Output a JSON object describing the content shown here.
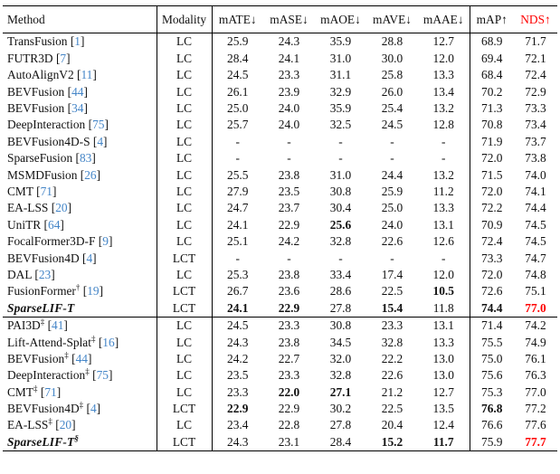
{
  "colors": {
    "citation_link": "#4485c7",
    "highlight_red": "#fe0000",
    "rule_black": "#000000"
  },
  "header": {
    "method": "Method",
    "modality": "Modality",
    "metrics": [
      "mATE↓",
      "mASE↓",
      "mAOE↓",
      "mAVE↓",
      "mAAE↓"
    ],
    "map": "mAP↑",
    "nds": "NDS↑"
  },
  "sections": [
    {
      "rows": [
        {
          "method": "TransFusion",
          "sup": "",
          "cite": "1",
          "emph": false,
          "modality": "LC",
          "values": [
            "25.9",
            "24.3",
            "35.9",
            "28.8",
            "12.7",
            "68.9",
            "71.7"
          ],
          "bold": [],
          "red": []
        },
        {
          "method": "FUTR3D",
          "sup": "",
          "cite": "7",
          "emph": false,
          "modality": "LC",
          "values": [
            "28.4",
            "24.1",
            "31.0",
            "30.0",
            "12.0",
            "69.4",
            "72.1"
          ],
          "bold": [],
          "red": []
        },
        {
          "method": "AutoAlignV2",
          "sup": "",
          "cite": "11",
          "emph": false,
          "modality": "LC",
          "values": [
            "24.5",
            "23.3",
            "31.1",
            "25.8",
            "13.3",
            "68.4",
            "72.4"
          ],
          "bold": [],
          "red": []
        },
        {
          "method": "BEVFusion",
          "sup": "",
          "cite": "44",
          "emph": false,
          "modality": "LC",
          "values": [
            "26.1",
            "23.9",
            "32.9",
            "26.0",
            "13.4",
            "70.2",
            "72.9"
          ],
          "bold": [],
          "red": []
        },
        {
          "method": "BEVFusion",
          "sup": "",
          "cite": "34",
          "emph": false,
          "modality": "LC",
          "values": [
            "25.0",
            "24.0",
            "35.9",
            "25.4",
            "13.2",
            "71.3",
            "73.3"
          ],
          "bold": [],
          "red": []
        },
        {
          "method": "DeepInteraction",
          "sup": "",
          "cite": "75",
          "emph": false,
          "modality": "LC",
          "values": [
            "25.7",
            "24.0",
            "32.5",
            "24.5",
            "12.8",
            "70.8",
            "73.4"
          ],
          "bold": [],
          "red": []
        },
        {
          "method": "BEVFusion4D-S",
          "sup": "",
          "cite": "4",
          "emph": false,
          "modality": "LC",
          "values": [
            "-",
            "-",
            "-",
            "-",
            "-",
            "71.9",
            "73.7"
          ],
          "bold": [],
          "red": []
        },
        {
          "method": "SparseFusion",
          "sup": "",
          "cite": "83",
          "emph": false,
          "modality": "LC",
          "values": [
            "-",
            "-",
            "-",
            "-",
            "-",
            "72.0",
            "73.8"
          ],
          "bold": [],
          "red": []
        },
        {
          "method": "MSMDFusion",
          "sup": "",
          "cite": "26",
          "emph": false,
          "modality": "LC",
          "values": [
            "25.5",
            "23.8",
            "31.0",
            "24.4",
            "13.2",
            "71.5",
            "74.0"
          ],
          "bold": [],
          "red": []
        },
        {
          "method": "CMT",
          "sup": "",
          "cite": "71",
          "emph": false,
          "modality": "LC",
          "values": [
            "27.9",
            "23.5",
            "30.8",
            "25.9",
            "11.2",
            "72.0",
            "74.1"
          ],
          "bold": [],
          "red": []
        },
        {
          "method": "EA-LSS",
          "sup": "",
          "cite": "20",
          "emph": false,
          "modality": "LC",
          "values": [
            "24.7",
            "23.7",
            "30.4",
            "25.0",
            "13.3",
            "72.2",
            "74.4"
          ],
          "bold": [],
          "red": []
        },
        {
          "method": "UniTR",
          "sup": "",
          "cite": "64",
          "emph": false,
          "modality": "LC",
          "values": [
            "24.1",
            "22.9",
            "25.6",
            "24.0",
            "13.1",
            "70.9",
            "74.5"
          ],
          "bold": [
            2
          ],
          "red": []
        },
        {
          "method": "FocalFormer3D-F",
          "sup": "",
          "cite": "9",
          "emph": false,
          "modality": "LC",
          "values": [
            "25.1",
            "24.2",
            "32.8",
            "22.6",
            "12.6",
            "72.4",
            "74.5"
          ],
          "bold": [],
          "red": []
        },
        {
          "method": "BEVFusion4D",
          "sup": "",
          "cite": "4",
          "emph": false,
          "modality": "LCT",
          "values": [
            "-",
            "-",
            "-",
            "-",
            "-",
            "73.3",
            "74.7"
          ],
          "bold": [],
          "red": []
        },
        {
          "method": "DAL",
          "sup": "",
          "cite": "23",
          "emph": false,
          "modality": "LC",
          "values": [
            "25.3",
            "23.8",
            "33.4",
            "17.4",
            "12.0",
            "72.0",
            "74.8"
          ],
          "bold": [],
          "red": []
        },
        {
          "method": "FusionFormer",
          "sup": "†",
          "cite": "19",
          "emph": false,
          "modality": "LCT",
          "values": [
            "26.7",
            "23.6",
            "28.6",
            "22.5",
            "10.5",
            "72.6",
            "75.1"
          ],
          "bold": [
            4
          ],
          "red": []
        },
        {
          "method": "SparseLIF-T",
          "sup": "",
          "cite": "",
          "emph": true,
          "modality": "LCT",
          "values": [
            "24.1",
            "22.9",
            "27.8",
            "15.4",
            "11.8",
            "74.4",
            "77.0"
          ],
          "bold": [
            0,
            1,
            3,
            5
          ],
          "red": [
            6
          ]
        }
      ]
    },
    {
      "rows": [
        {
          "method": "PAI3D",
          "sup": "‡",
          "cite": "41",
          "emph": false,
          "modality": "LC",
          "values": [
            "24.5",
            "23.3",
            "30.8",
            "23.3",
            "13.1",
            "71.4",
            "74.2"
          ],
          "bold": [],
          "red": []
        },
        {
          "method": "Lift-Attend-Splat",
          "sup": "‡",
          "cite": "16",
          "emph": false,
          "modality": "LC",
          "values": [
            "24.3",
            "23.8",
            "34.5",
            "32.8",
            "13.3",
            "75.5",
            "74.9"
          ],
          "bold": [],
          "red": []
        },
        {
          "method": "BEVFusion",
          "sup": "‡",
          "cite": "44",
          "emph": false,
          "modality": "LC",
          "values": [
            "24.2",
            "22.7",
            "32.0",
            "22.2",
            "13.0",
            "75.0",
            "76.1"
          ],
          "bold": [],
          "red": []
        },
        {
          "method": "DeepInteraction",
          "sup": "‡",
          "cite": "75",
          "emph": false,
          "modality": "LC",
          "values": [
            "23.5",
            "23.3",
            "32.8",
            "22.6",
            "13.0",
            "75.6",
            "76.3"
          ],
          "bold": [],
          "red": []
        },
        {
          "method": "CMT",
          "sup": "‡",
          "cite": "71",
          "emph": false,
          "modality": "LC",
          "values": [
            "23.3",
            "22.0",
            "27.1",
            "21.2",
            "12.7",
            "75.3",
            "77.0"
          ],
          "bold": [
            1,
            2
          ],
          "red": []
        },
        {
          "method": "BEVFusion4D",
          "sup": "‡",
          "cite": "4",
          "emph": false,
          "modality": "LCT",
          "values": [
            "22.9",
            "22.9",
            "30.2",
            "22.5",
            "13.5",
            "76.8",
            "77.2"
          ],
          "bold": [
            0,
            5
          ],
          "red": []
        },
        {
          "method": "EA-LSS",
          "sup": "‡",
          "cite": "20",
          "emph": false,
          "modality": "LC",
          "values": [
            "23.4",
            "22.8",
            "27.8",
            "20.4",
            "12.4",
            "76.6",
            "77.6"
          ],
          "bold": [],
          "red": []
        },
        {
          "method": "SparseLIF-T",
          "sup": "§",
          "cite": "",
          "emph": true,
          "modality": "LCT",
          "values": [
            "24.3",
            "23.1",
            "28.4",
            "15.2",
            "11.7",
            "75.9",
            "77.7"
          ],
          "bold": [
            3,
            4
          ],
          "red": [
            6
          ]
        }
      ]
    }
  ]
}
